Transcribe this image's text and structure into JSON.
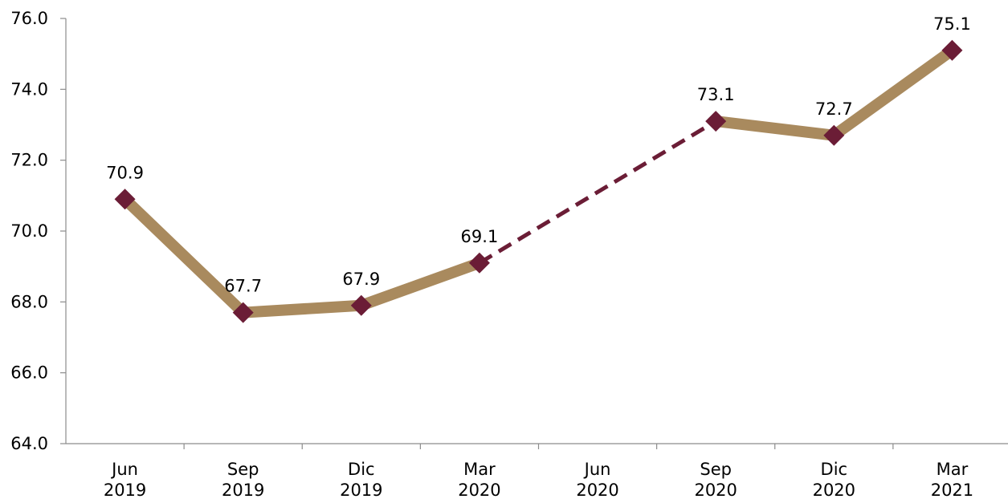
{
  "chart_data": {
    "type": "line",
    "title": "",
    "xlabel": "",
    "ylabel": "",
    "categories": [
      [
        "Jun",
        "2019"
      ],
      [
        "Sep",
        "2019"
      ],
      [
        "Dic",
        "2019"
      ],
      [
        "Mar",
        "2020"
      ],
      [
        "Jun",
        "2020"
      ],
      [
        "Sep",
        "2020"
      ],
      [
        "Dic",
        "2020"
      ],
      [
        "Mar",
        "2021"
      ]
    ],
    "values": [
      70.9,
      67.7,
      67.9,
      69.1,
      null,
      73.1,
      72.7,
      75.1
    ],
    "data_labels": [
      "70.9",
      "67.7",
      "67.9",
      "69.1",
      "",
      "73.1",
      "72.7",
      "75.1"
    ],
    "ylim": [
      64.0,
      76.0
    ],
    "y_ticks": [
      "64.0",
      "66.0",
      "68.0",
      "70.0",
      "72.0",
      "74.0",
      "76.0"
    ],
    "gap_bridge": {
      "from_index": 3,
      "to_index": 5,
      "style": "dashed"
    },
    "grid": false,
    "legend": "none",
    "colors": {
      "line": "#A98A5E",
      "marker": "#6B1D36",
      "dashed": "#6B1D36",
      "axis": "#8C8C8C"
    }
  }
}
